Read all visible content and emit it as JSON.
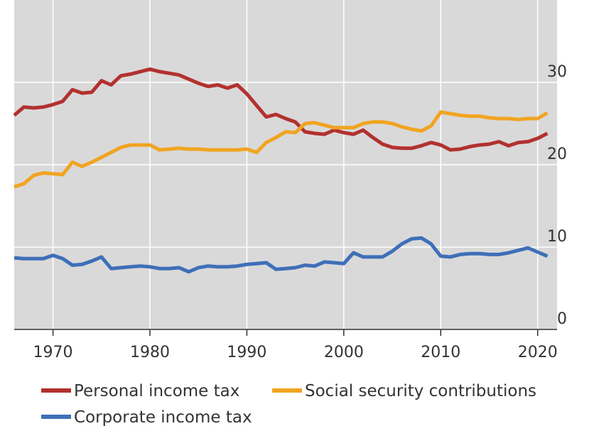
{
  "chart_data": {
    "type": "line",
    "title": "",
    "xlabel": "",
    "ylabel": "",
    "xlim": [
      1966,
      2022
    ],
    "ylim": [
      0,
      40
    ],
    "x_ticks": [
      1970,
      1980,
      1990,
      2000,
      2010,
      2020
    ],
    "y_ticks": [
      0,
      10,
      20,
      30
    ],
    "x_tick_labels": [
      "1970",
      "1980",
      "1990",
      "2000",
      "2010",
      "2020"
    ],
    "y_tick_labels": [
      "0",
      "10",
      "20",
      "30"
    ],
    "grid": "horizontal",
    "legend_position": "bottom",
    "x": [
      1966,
      1967,
      1968,
      1969,
      1970,
      1971,
      1972,
      1973,
      1974,
      1975,
      1976,
      1977,
      1978,
      1979,
      1980,
      1981,
      1982,
      1983,
      1984,
      1985,
      1986,
      1987,
      1988,
      1989,
      1990,
      1991,
      1992,
      1993,
      1994,
      1995,
      1996,
      1997,
      1998,
      1999,
      2000,
      2001,
      2002,
      2003,
      2004,
      2005,
      2006,
      2007,
      2008,
      2009,
      2010,
      2011,
      2012,
      2013,
      2014,
      2015,
      2016,
      2017,
      2018,
      2019,
      2020,
      2021
    ],
    "series": [
      {
        "name": "Personal income tax",
        "color": "#b2312e",
        "values": [
          26.0,
          27.0,
          26.9,
          27.0,
          27.3,
          27.7,
          29.1,
          28.7,
          28.8,
          30.2,
          29.7,
          30.8,
          31.0,
          31.3,
          31.6,
          31.3,
          31.1,
          30.9,
          30.4,
          29.9,
          29.5,
          29.7,
          29.3,
          29.7,
          28.6,
          27.2,
          25.8,
          26.1,
          25.6,
          25.2,
          24.0,
          23.8,
          23.7,
          24.2,
          23.9,
          23.7,
          24.2,
          23.3,
          22.5,
          22.1,
          22.0,
          22.0,
          22.3,
          22.7,
          22.4,
          21.8,
          21.9,
          22.2,
          22.4,
          22.5,
          22.8,
          22.3,
          22.7,
          22.8,
          23.2,
          23.8
        ]
      },
      {
        "name": "Social security contributions",
        "color": "#f1a421",
        "values": [
          17.3,
          17.7,
          18.7,
          19.0,
          18.9,
          18.8,
          20.3,
          19.8,
          20.3,
          20.9,
          21.5,
          22.1,
          22.4,
          22.4,
          22.4,
          21.8,
          21.9,
          22.0,
          21.9,
          21.9,
          21.8,
          21.8,
          21.8,
          21.8,
          21.9,
          21.5,
          22.7,
          23.3,
          24.0,
          23.9,
          25.0,
          25.1,
          24.8,
          24.5,
          24.5,
          24.5,
          25.0,
          25.2,
          25.2,
          25.0,
          24.6,
          24.3,
          24.1,
          24.7,
          26.4,
          26.2,
          26.0,
          25.9,
          25.9,
          25.7,
          25.6,
          25.6,
          25.5,
          25.6,
          25.6,
          26.3
        ]
      },
      {
        "name": "Corporate income tax",
        "color": "#3e6fb8",
        "values": [
          8.7,
          8.6,
          8.6,
          8.6,
          9.0,
          8.6,
          7.8,
          7.9,
          8.3,
          8.8,
          7.4,
          7.5,
          7.6,
          7.7,
          7.6,
          7.4,
          7.4,
          7.5,
          7.0,
          7.5,
          7.7,
          7.6,
          7.6,
          7.7,
          7.9,
          8.0,
          8.1,
          7.3,
          7.4,
          7.5,
          7.8,
          7.7,
          8.2,
          8.1,
          8.0,
          9.3,
          8.8,
          8.8,
          8.8,
          9.5,
          10.4,
          11.0,
          11.1,
          10.4,
          8.9,
          8.8,
          9.1,
          9.2,
          9.2,
          9.1,
          9.1,
          9.3,
          9.6,
          9.9,
          9.4,
          8.9
        ]
      }
    ]
  }
}
